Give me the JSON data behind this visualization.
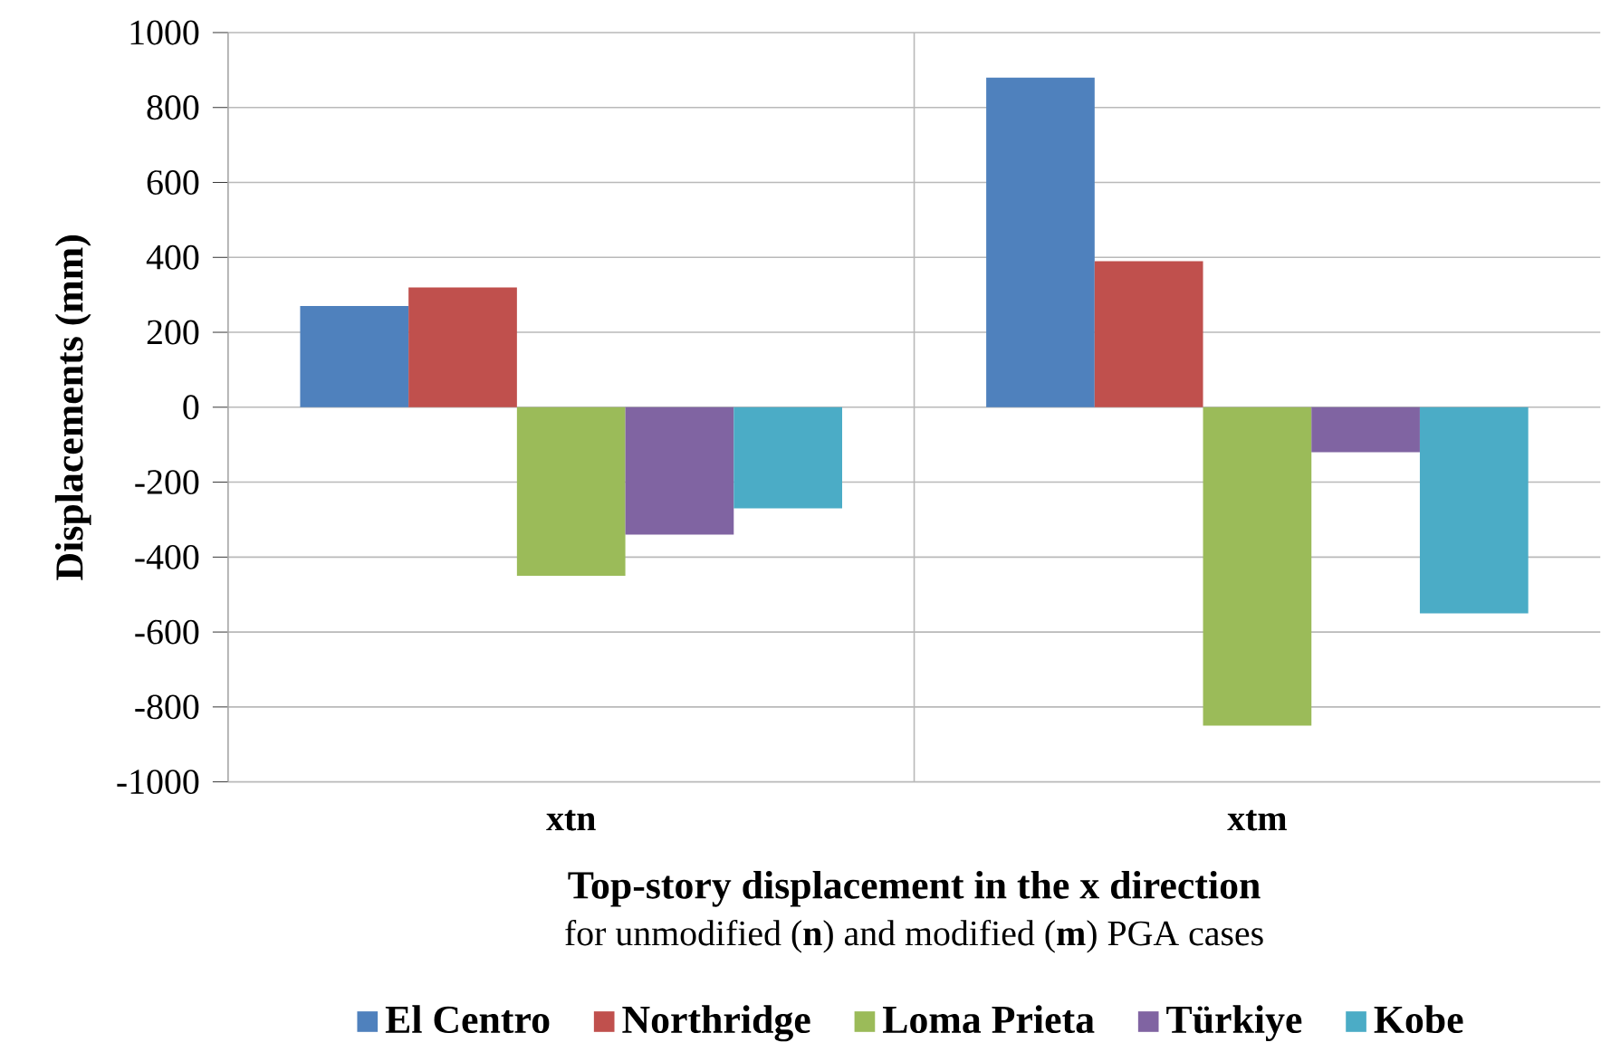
{
  "chart_data": {
    "type": "bar",
    "categories": [
      "xtn",
      "xtm"
    ],
    "series": [
      {
        "name": "El Centro",
        "color": "#4f81bd",
        "values": [
          270,
          880
        ]
      },
      {
        "name": "Northridge",
        "color": "#c0504d",
        "values": [
          320,
          390
        ]
      },
      {
        "name": "Loma Prieta",
        "color": "#9bbb59",
        "values": [
          -450,
          -850
        ]
      },
      {
        "name": "Türkiye",
        "color": "#8064a2",
        "values": [
          -340,
          -120
        ]
      },
      {
        "name": "Kobe",
        "color": "#4bacc6",
        "values": [
          -270,
          -550
        ]
      }
    ],
    "ylabel": "Displacements (mm)",
    "xlabel": "Top-story displacement in the x direction",
    "annotations": [
      "for unmodified (**n**) and modified (**m**) PGA cases"
    ],
    "ylim": [
      -1000,
      1000
    ],
    "yticks": [
      -1000,
      -800,
      -600,
      -400,
      -200,
      0,
      200,
      400,
      600,
      800,
      1000
    ],
    "grid": true,
    "legend": "bottom"
  }
}
